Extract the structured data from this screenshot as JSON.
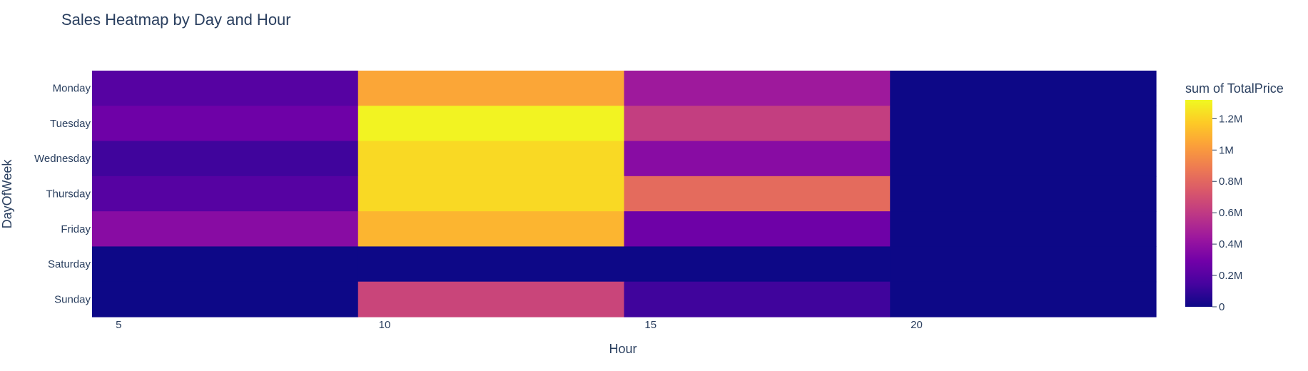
{
  "chart_data": {
    "type": "heatmap",
    "title": "Sales Heatmap by Day and Hour",
    "xlabel": "Hour",
    "ylabel": "DayOfWeek",
    "x_bins": [
      [
        4.5,
        9.5
      ],
      [
        9.5,
        14.5
      ],
      [
        14.5,
        19.5
      ],
      [
        19.5,
        24.5
      ]
    ],
    "xlim": [
      4.5,
      24.5
    ],
    "x_ticks": [
      5,
      10,
      15,
      20
    ],
    "y_categories": [
      "Monday",
      "Tuesday",
      "Wednesday",
      "Thursday",
      "Friday",
      "Saturday",
      "Sunday"
    ],
    "values": [
      [
        200000,
        1050000,
        450000,
        0
      ],
      [
        280000,
        1300000,
        620000,
        0
      ],
      [
        130000,
        1220000,
        370000,
        0
      ],
      [
        200000,
        1220000,
        820000,
        0
      ],
      [
        370000,
        1100000,
        280000,
        0
      ],
      [
        0,
        0,
        0,
        0
      ],
      [
        0,
        650000,
        130000,
        0
      ]
    ],
    "colorbar": {
      "title": "sum of TotalPrice",
      "range": [
        0,
        1320000
      ],
      "ticks": [
        0,
        200000,
        400000,
        600000,
        800000,
        1000000,
        1200000
      ],
      "tick_labels": [
        "0",
        "0.2M",
        "0.4M",
        "0.6M",
        "0.8M",
        "1M",
        "1.2M"
      ],
      "colorscale": [
        "#0d0887",
        "#46039f",
        "#7201a8",
        "#9c179e",
        "#bd3786",
        "#d8576b",
        "#ed7953",
        "#fb9f3a",
        "#fdca26",
        "#f0f921"
      ]
    },
    "grid": false,
    "legend": "colorbar-right"
  }
}
